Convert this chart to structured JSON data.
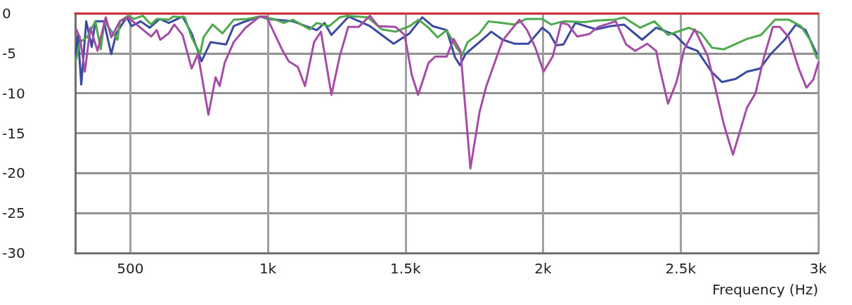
{
  "chart_data": {
    "type": "line",
    "xlabel": "Frequency (Hz)",
    "xlim": [
      300,
      3000
    ],
    "xticks": [
      {
        "value": 500,
        "label": "500"
      },
      {
        "value": 1000,
        "label": "1k"
      },
      {
        "value": 1500,
        "label": "1.5k"
      },
      {
        "value": 2000,
        "label": "2k"
      },
      {
        "value": 2500,
        "label": "2.5k"
      },
      {
        "value": 3000,
        "label": "3k"
      }
    ],
    "ylim": [
      -30,
      0
    ],
    "yticks": [
      -30,
      -25,
      -20,
      -15,
      -10,
      -5,
      0
    ],
    "grid": true,
    "marker": "none",
    "line_style": "solid",
    "series": [
      {
        "color": "#d62728",
        "x": [
          300,
          3000
        ],
        "values": [
          0,
          0
        ]
      },
      {
        "color": "#3a4aa0",
        "x": [
          302,
          310,
          322,
          340,
          360,
          373,
          404,
          431,
          449,
          487,
          505,
          538,
          571,
          607,
          640,
          690,
          723,
          759,
          792,
          848,
          876,
          911,
          970,
          1003,
          1091,
          1178,
          1206,
          1231,
          1294,
          1371,
          1457,
          1515,
          1561,
          1599,
          1650,
          1680,
          1698,
          1718,
          1769,
          1812,
          1853,
          1896,
          1947,
          1997,
          2023,
          2048,
          2074,
          2117,
          2193,
          2244,
          2294,
          2360,
          2411,
          2480,
          2523,
          2561,
          2612,
          2650,
          2700,
          2741,
          2789,
          2827,
          2878,
          2919,
          2954,
          2995
        ],
        "values": [
          -5.1,
          -2.7,
          -8.9,
          -1.0,
          -4.2,
          -1.0,
          -1.0,
          -5.1,
          -2.5,
          -0.5,
          -1.6,
          -1.0,
          -1.8,
          -0.7,
          -1.2,
          -0.4,
          -2.5,
          -6.0,
          -3.6,
          -3.9,
          -1.6,
          -1.1,
          -0.4,
          -0.7,
          -1.0,
          -2.1,
          -1.2,
          -2.7,
          -0.4,
          -1.6,
          -3.8,
          -2.5,
          -0.5,
          -1.6,
          -2.1,
          -5.5,
          -6.5,
          -5.1,
          -3.6,
          -2.3,
          -3.3,
          -3.8,
          -3.8,
          -1.8,
          -2.5,
          -4.0,
          -3.9,
          -1.2,
          -2.0,
          -1.6,
          -1.4,
          -3.3,
          -1.8,
          -2.7,
          -4.2,
          -4.7,
          -7.3,
          -8.6,
          -8.2,
          -7.3,
          -6.9,
          -5.1,
          -3.3,
          -1.4,
          -2.1,
          -5.1
        ]
      },
      {
        "color": "#4caa4c",
        "x": [
          302,
          317,
          343,
          373,
          393,
          406,
          454,
          462,
          492,
          513,
          546,
          576,
          596,
          640,
          657,
          698,
          723,
          754,
          766,
          799,
          835,
          876,
          926,
          970,
          1020,
          1058,
          1091,
          1152,
          1178,
          1223,
          1261,
          1287,
          1363,
          1414,
          1464,
          1515,
          1548,
          1584,
          1617,
          1650,
          1685,
          1706,
          1726,
          1769,
          1802,
          1853,
          1896,
          1939,
          1997,
          2030,
          2074,
          2150,
          2193,
          2259,
          2294,
          2353,
          2404,
          2454,
          2513,
          2530,
          2574,
          2614,
          2657,
          2741,
          2792,
          2843,
          2893,
          2937,
          2970,
          2995
        ],
        "values": [
          -6.0,
          -3.6,
          -3.0,
          -1.0,
          -4.5,
          -1.0,
          -3.3,
          -1.0,
          -0.3,
          -0.7,
          -0.3,
          -1.4,
          -0.7,
          -0.8,
          -0.4,
          -0.5,
          -3.0,
          -5.1,
          -3.0,
          -1.4,
          -2.5,
          -0.8,
          -0.7,
          -0.4,
          -0.7,
          -1.2,
          -0.8,
          -2.0,
          -1.2,
          -1.6,
          -0.5,
          -0.3,
          -0.5,
          -2.0,
          -2.3,
          -1.6,
          -0.8,
          -1.8,
          -3.0,
          -2.1,
          -4.3,
          -5.2,
          -3.6,
          -2.5,
          -1.0,
          -1.2,
          -1.4,
          -0.7,
          -0.7,
          -1.4,
          -1.0,
          -1.1,
          -0.9,
          -0.8,
          -0.5,
          -1.8,
          -1.0,
          -2.7,
          -2.0,
          -1.8,
          -2.5,
          -4.3,
          -4.5,
          -3.2,
          -2.7,
          -0.8,
          -0.8,
          -1.6,
          -3.3,
          -5.6
        ]
      },
      {
        "color": "#a64ca6",
        "x": [
          302,
          317,
          335,
          355,
          381,
          411,
          431,
          462,
          492,
          530,
          576,
          596,
          609,
          640,
          660,
          690,
          723,
          746,
          784,
          810,
          825,
          843,
          876,
          919,
          970,
          995,
          1051,
          1076,
          1109,
          1135,
          1168,
          1193,
          1231,
          1261,
          1292,
          1330,
          1371,
          1401,
          1464,
          1497,
          1523,
          1546,
          1584,
          1609,
          1650,
          1675,
          1700,
          1736,
          1769,
          1794,
          1825,
          1853,
          1914,
          1942,
          1972,
          2002,
          2035,
          2066,
          2091,
          2124,
          2167,
          2200,
          2264,
          2302,
          2335,
          2378,
          2411,
          2424,
          2454,
          2485,
          2513,
          2551,
          2599,
          2657,
          2690,
          2741,
          2772,
          2802,
          2835,
          2860,
          2893,
          2929,
          2957,
          2982,
          3000
        ],
        "values": [
          -1.9,
          -3.0,
          -7.3,
          -1.8,
          -4.7,
          -0.5,
          -3.0,
          -1.0,
          -0.5,
          -1.6,
          -2.9,
          -2.1,
          -3.3,
          -2.5,
          -1.4,
          -2.7,
          -6.9,
          -5.1,
          -12.7,
          -8.0,
          -9.1,
          -6.2,
          -3.6,
          -1.8,
          -0.4,
          -0.4,
          -4.5,
          -6.0,
          -6.7,
          -9.1,
          -3.6,
          -2.3,
          -10.2,
          -5.4,
          -1.7,
          -1.7,
          -0.3,
          -1.6,
          -1.7,
          -2.7,
          -7.7,
          -10.2,
          -6.2,
          -5.4,
          -5.4,
          -3.2,
          -4.7,
          -19.4,
          -12.4,
          -9.1,
          -6.1,
          -3.4,
          -0.8,
          -2.1,
          -4.3,
          -7.3,
          -5.4,
          -1.2,
          -1.4,
          -2.9,
          -2.6,
          -1.7,
          -1.0,
          -3.9,
          -4.7,
          -3.8,
          -4.7,
          -6.9,
          -11.3,
          -8.6,
          -4.5,
          -2.0,
          -5.4,
          -13.9,
          -17.7,
          -11.8,
          -10.0,
          -5.6,
          -1.7,
          -1.7,
          -3.0,
          -6.9,
          -9.3,
          -8.3,
          -6.2
        ]
      }
    ]
  }
}
